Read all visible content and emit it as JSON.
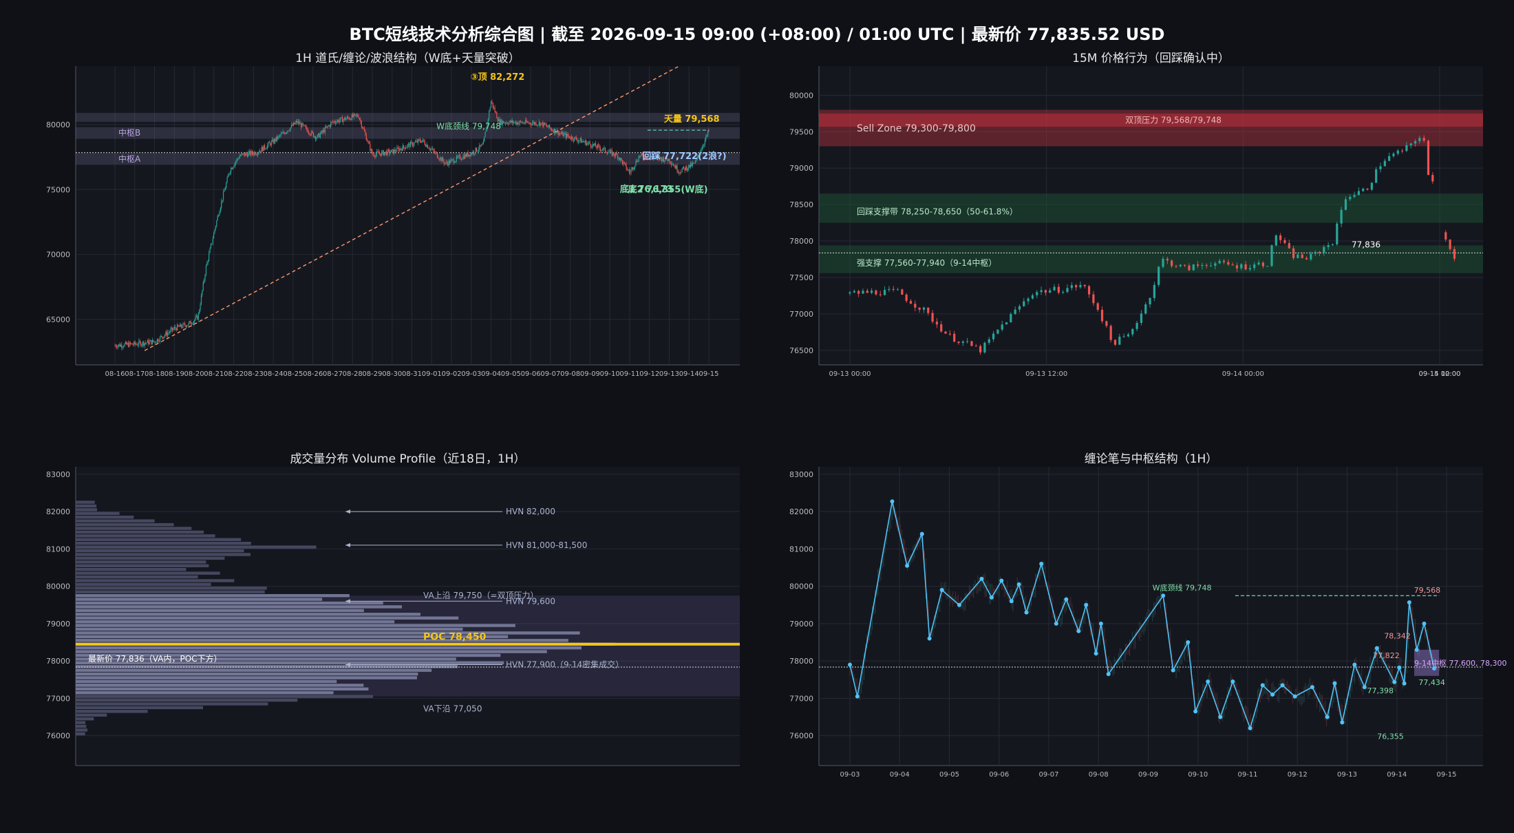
{
  "title": "BTC短线技术分析综合图  |  截至 2026-09-15 09:00 (+08:00) / 01:00 UTC  |  最新价 77,835.52 USD",
  "colors": {
    "bg": "#0f1117",
    "panel": "#161820",
    "up": "#26a69a",
    "down": "#ef5350",
    "accent": "#f5c518",
    "pivot": "#4fc3f7"
  },
  "chart_data": [
    {
      "id": "p1",
      "type": "candlestick",
      "title": "1H 道氏/缠论/波浪结构（W底+天量突破）",
      "x_tick_labels": [
        "08-16",
        "08-17",
        "08-18",
        "08-19",
        "08-20",
        "08-21",
        "08-22",
        "08-23",
        "08-24",
        "08-25",
        "08-26",
        "08-27",
        "08-28",
        "08-29",
        "08-30",
        "08-31",
        "09-01",
        "09-02",
        "09-03",
        "09-04",
        "09-05",
        "09-06",
        "09-07",
        "09-08",
        "09-09",
        "09-10",
        "09-11",
        "09-12",
        "09-13",
        "09-14",
        "09-15"
      ],
      "y_ticks": [
        65000,
        70000,
        75000,
        80000
      ],
      "ylim": [
        61500,
        84500
      ],
      "price_path": [
        [
          0,
          63000
        ],
        [
          1,
          63100
        ],
        [
          2,
          63300
        ],
        [
          3,
          64300
        ],
        [
          3.8,
          64700
        ],
        [
          4.2,
          65200
        ],
        [
          4.6,
          69000
        ],
        [
          5.2,
          73000
        ],
        [
          5.8,
          76500
        ],
        [
          6.3,
          77600
        ],
        [
          7.2,
          77900
        ],
        [
          8.0,
          78700
        ],
        [
          9.2,
          80200
        ],
        [
          10.2,
          79000
        ],
        [
          11.0,
          80200
        ],
        [
          12.3,
          80700
        ],
        [
          13.0,
          77700
        ],
        [
          14.0,
          77900
        ],
        [
          15.5,
          78800
        ],
        [
          16.7,
          77000
        ],
        [
          18.0,
          77800
        ],
        [
          18.6,
          78400
        ],
        [
          19.0,
          81800
        ],
        [
          19.4,
          80200
        ],
        [
          21.5,
          80100
        ],
        [
          22.5,
          79300
        ],
        [
          24.0,
          78500
        ],
        [
          25.4,
          77600
        ],
        [
          26.0,
          76300
        ],
        [
          26.5,
          77600
        ],
        [
          27.0,
          77500
        ],
        [
          28.0,
          77300
        ],
        [
          28.5,
          76400
        ],
        [
          29.3,
          77000
        ],
        [
          30.0,
          79500
        ],
        [
          30.1,
          77800
        ]
      ],
      "trendline": [
        [
          1.5,
          62600
        ],
        [
          28.5,
          84500
        ]
      ],
      "zones": [
        {
          "y": [
            80200,
            80900
          ]
        },
        {
          "y": [
            78900,
            79800
          ],
          "label": "中枢B"
        },
        {
          "y": [
            76900,
            77800
          ],
          "label": "中枢A"
        }
      ],
      "current_price": 77836,
      "annotations": [
        {
          "text": "③顶 82,272",
          "x": 19.0,
          "y": 82272,
          "color": "#f5c518"
        },
        {
          "text": "W底颈线 79,748",
          "x": 18.5,
          "y": 79748,
          "color": "#7ee0a8"
        },
        {
          "text": "天量 79,568",
          "x": 29.3,
          "y": 79568,
          "color": "#f5c518"
        },
        {
          "text": "回踩 77,722(2浪?)",
          "x": 28.9,
          "y": 77722,
          "color": "#9ec9ff"
        },
        {
          "text": "底1 76,173",
          "x": 26.9,
          "y": 76173,
          "color": "#7ee0a8"
        },
        {
          "text": "底2 76,355(W底)",
          "x": 28.7,
          "y": 76355,
          "color": "#7ee0a8"
        }
      ]
    },
    {
      "id": "p2",
      "type": "candlestick",
      "title": "15M 价格行为（回踩确认中）",
      "x_tick_labels": [
        "09-13 00:00",
        "09-13 12:00",
        "09-14 00:00",
        "09-14 12:00",
        "09-15 00:00"
      ],
      "y_ticks": [
        76500,
        77000,
        77500,
        78000,
        78500,
        79000,
        79500,
        80000
      ],
      "ylim": [
        76300,
        80400
      ],
      "price_path": [
        [
          0,
          77280
        ],
        [
          1.5,
          77300
        ],
        [
          3,
          77300
        ],
        [
          3.5,
          77200
        ],
        [
          4.5,
          77050
        ],
        [
          6,
          76700
        ],
        [
          8,
          76500
        ],
        [
          9.5,
          76900
        ],
        [
          11.2,
          77300
        ],
        [
          13.0,
          77340
        ],
        [
          14.2,
          77400
        ],
        [
          15.2,
          77050
        ],
        [
          16,
          76600
        ],
        [
          17.0,
          76700
        ],
        [
          18,
          77100
        ],
        [
          18.5,
          77350
        ],
        [
          19.0,
          77750
        ],
        [
          20.5,
          77620
        ],
        [
          22.0,
          77700
        ],
        [
          24.0,
          77650
        ],
        [
          25.5,
          77700
        ],
        [
          26.0,
          78100
        ],
        [
          27.0,
          77800
        ],
        [
          28.0,
          77760
        ],
        [
          29.5,
          78000
        ],
        [
          30.2,
          78600
        ],
        [
          31.5,
          78700
        ],
        [
          32.5,
          79100
        ],
        [
          34.2,
          79300
        ],
        [
          35.0,
          79500
        ],
        [
          35.2,
          78900
        ],
        [
          35.6,
          78800
        ],
        [
          36.0,
          78800
        ],
        [
          36.2,
          78120
        ],
        [
          36.7,
          77900
        ],
        [
          36.9,
          77750
        ]
      ],
      "x_ticks_pos": [
        0,
        12,
        24,
        36
      ],
      "current_price": 77836,
      "zones": [
        {
          "y": [
            79300,
            79800
          ],
          "label": "Sell Zone 79,300-79,800",
          "color": "#b3343d"
        },
        {
          "y": [
            79568,
            79748
          ],
          "label": "双顶压力 79,568/79,748",
          "color": "#c0313d"
        },
        {
          "y": [
            78250,
            78650
          ],
          "label": "回踩支撑带 78,250-78,650（50-61.8%）",
          "color": "#1e5a37"
        },
        {
          "y": [
            77560,
            77940
          ],
          "label": "强支撑 77,560-77,940（9-14中枢）",
          "color": "#1e5a37"
        }
      ],
      "price_label": "77,836"
    },
    {
      "id": "p3",
      "type": "volume-profile",
      "title": "成交量分布 Volume Profile（近18日，1H）",
      "y_ticks": [
        76000,
        77000,
        78000,
        79000,
        80000,
        81000,
        82000,
        83000
      ],
      "ylim": [
        75200,
        83200
      ],
      "price_bins": [
        76500,
        77000,
        77500,
        78000,
        78500,
        79000,
        79500,
        80000,
        80500,
        81000,
        81500,
        82000
      ],
      "volume_profile": [
        6,
        50,
        58,
        75,
        100,
        68,
        58,
        28,
        22,
        40,
        20,
        4
      ],
      "poc": 78450,
      "va_high": 79750,
      "va_low": 77050,
      "current_price": 77836,
      "annotations": [
        {
          "text": "HVN 82,000",
          "y": 82000
        },
        {
          "text": "HVN 81,000-81,500",
          "y": 81100
        },
        {
          "text": "VA上沿 79,750（=双顶压力）",
          "y": 79750
        },
        {
          "text": "HVN 79,600",
          "y": 79600
        },
        {
          "text": "POC 78,450",
          "y": 78450
        },
        {
          "text": "最新价 77,836（VA内，POC下方）",
          "y": 77836
        },
        {
          "text": "HVN 77,900（9-14密集成交）",
          "y": 77900
        },
        {
          "text": "VA下沿 77,050",
          "y": 77050
        }
      ]
    },
    {
      "id": "p4",
      "type": "line",
      "title": "缠论笔与中枢结构（1H）",
      "x_tick_labels": [
        "09-03",
        "09-04",
        "09-05",
        "09-06",
        "09-07",
        "09-08",
        "09-09",
        "09-10",
        "09-11",
        "09-12",
        "09-13",
        "09-14",
        "09-15"
      ],
      "y_ticks": [
        76000,
        77000,
        78000,
        79000,
        80000,
        81000,
        82000,
        83000
      ],
      "ylim": [
        75200,
        83200
      ],
      "x": [
        0,
        0.15,
        0.85,
        1.15,
        1.45,
        1.6,
        1.85,
        2.2,
        2.65,
        2.85,
        3.05,
        3.25,
        3.4,
        3.55,
        3.85,
        4.15,
        4.35,
        4.6,
        4.75,
        4.95,
        5.05,
        5.2,
        6.3,
        6.5,
        6.8,
        6.95,
        7.2,
        7.45,
        7.7,
        8.05,
        8.3,
        8.5,
        8.7,
        8.95,
        9.3,
        9.6,
        9.75,
        9.9,
        10.15,
        10.35,
        10.6,
        10.95,
        11.05,
        11.15,
        11.25,
        11.4,
        11.55,
        11.75
      ],
      "y": [
        77900,
        77050,
        82272,
        80550,
        81400,
        78600,
        79900,
        79500,
        80200,
        79700,
        80150,
        79600,
        80050,
        79300,
        80600,
        79000,
        79650,
        78800,
        79500,
        78200,
        79000,
        77650,
        79748,
        77750,
        78500,
        76650,
        77450,
        76500,
        77450,
        76200,
        77350,
        77100,
        77350,
        77050,
        77300,
        76500,
        77400,
        76355,
        77900,
        77300,
        78342,
        77434,
        77822,
        77398,
        79568,
        78300,
        79000,
        77800
      ],
      "labels": [
        {
          "text": "W底颈线 79,748",
          "color": "#7ee0a8"
        },
        {
          "text": "79,568",
          "color": "#ef9a9a"
        },
        {
          "text": "78,342",
          "color": "#ef9a9a"
        },
        {
          "text": "77,822",
          "color": "#ef9a9a"
        },
        {
          "text": "77,434",
          "color": "#7ee0a8"
        },
        {
          "text": "77,398",
          "color": "#7ee0a8"
        },
        {
          "text": "76,355",
          "color": "#7ee0a8"
        },
        {
          "text": "9-14中枢 77,600, 78,300",
          "color": "#d9a7ff"
        }
      ],
      "neckline": 79748,
      "current_price": 77836,
      "pivot_zone": [
        77600,
        78300
      ]
    }
  ]
}
